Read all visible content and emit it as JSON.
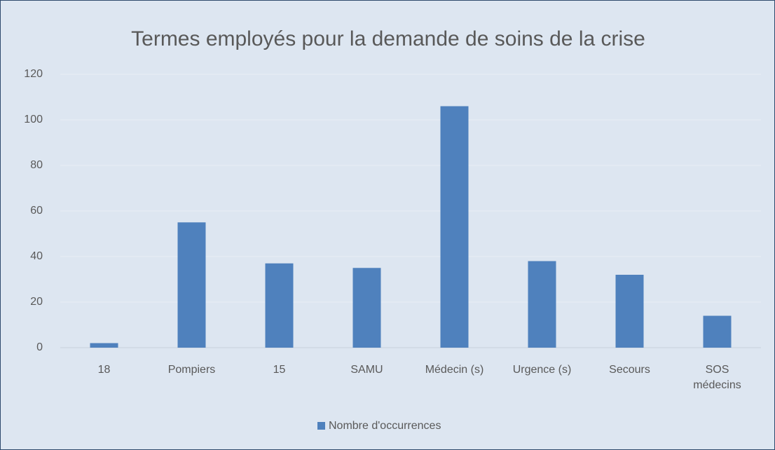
{
  "chart_data": {
    "type": "bar",
    "title": "Termes employés pour la demande de soins de la crise",
    "categories": [
      "18",
      "Pompiers",
      "15",
      "SAMU",
      "Médecin (s)",
      "Urgence (s)",
      "Secours",
      "SOS médecins"
    ],
    "series": [
      {
        "name": "Nombre d'occurrences",
        "color": "#4f81bd",
        "values": [
          2,
          55,
          37,
          35,
          106,
          38,
          32,
          14
        ]
      }
    ],
    "ylim": [
      0,
      120
    ],
    "yticks": [
      0,
      20,
      40,
      60,
      80,
      100,
      120
    ],
    "grid": true,
    "legend": "bottom"
  }
}
